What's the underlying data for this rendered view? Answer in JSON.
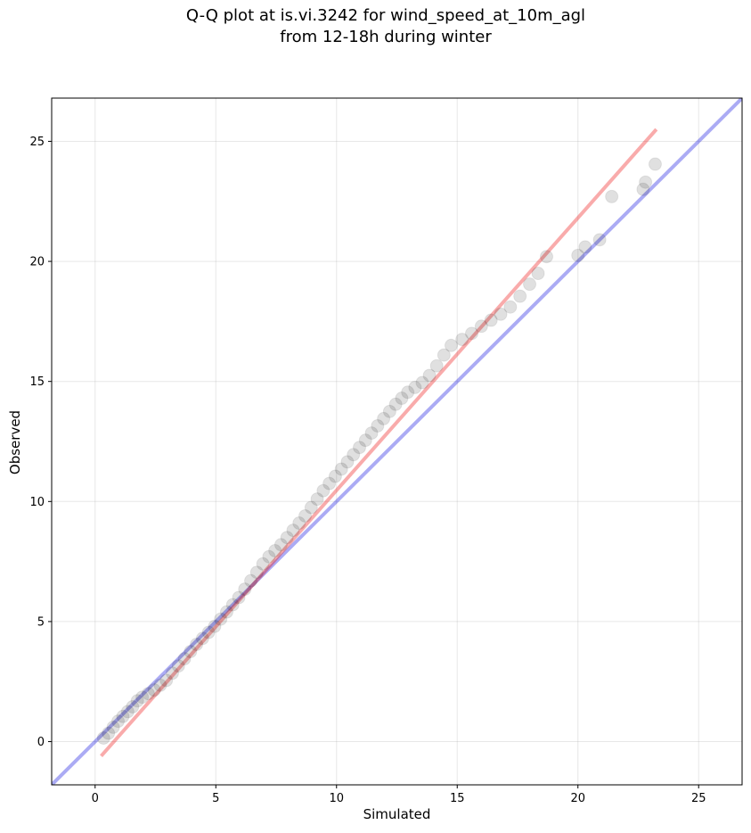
{
  "chart_data": {
    "type": "scatter",
    "title": [
      "Q-Q plot at is.vi.3242 for wind_speed_at_10m_agl",
      "from 12-18h during winter"
    ],
    "xlabel": "Simulated",
    "ylabel": "Observed",
    "xlim": [
      -1.8,
      26.8
    ],
    "ylim": [
      -1.8,
      26.8
    ],
    "xticks": [
      0,
      5,
      10,
      15,
      20,
      25
    ],
    "yticks": [
      0,
      5,
      10,
      15,
      20,
      25
    ],
    "grid": true,
    "point_color": "#000000",
    "reference_line": {
      "x": [
        -1.8,
        26.8
      ],
      "y": [
        -1.8,
        26.8
      ],
      "color": "#0000dd"
    },
    "fit_line": {
      "x": [
        0.25,
        23.25
      ],
      "y": [
        -0.6,
        25.5
      ],
      "color": "#ee0000"
    },
    "quantiles": {
      "x": [
        0.35,
        0.55,
        0.75,
        0.95,
        1.15,
        1.35,
        1.55,
        1.75,
        1.95,
        2.2,
        2.45,
        2.7,
        2.95,
        3.2,
        3.45,
        3.7,
        3.95,
        4.2,
        4.45,
        4.7,
        4.95,
        5.2,
        5.45,
        5.7,
        5.95,
        6.2,
        6.45,
        6.7,
        6.95,
        7.2,
        7.45,
        7.7,
        7.95,
        8.2,
        8.45,
        8.7,
        8.95,
        9.2,
        9.45,
        9.7,
        9.95,
        10.2,
        10.45,
        10.7,
        10.95,
        11.2,
        11.45,
        11.7,
        11.95,
        12.2,
        12.45,
        12.7,
        12.95,
        13.25,
        13.55,
        13.85,
        14.15,
        14.45,
        14.75,
        15.2,
        15.6,
        16.0,
        16.4,
        16.8,
        17.2,
        17.6,
        18.0,
        18.35,
        18.7,
        20.0,
        20.3,
        20.9,
        21.4,
        22.7,
        22.8,
        23.2
      ],
      "y": [
        0.15,
        0.35,
        0.6,
        0.85,
        1.05,
        1.25,
        1.45,
        1.7,
        1.85,
        2.0,
        2.15,
        2.35,
        2.55,
        2.85,
        3.15,
        3.45,
        3.75,
        4.05,
        4.3,
        4.55,
        4.8,
        5.1,
        5.4,
        5.7,
        6.0,
        6.35,
        6.7,
        7.05,
        7.4,
        7.7,
        7.95,
        8.2,
        8.5,
        8.8,
        9.1,
        9.4,
        9.75,
        10.1,
        10.45,
        10.75,
        11.05,
        11.35,
        11.65,
        11.95,
        12.25,
        12.55,
        12.85,
        13.15,
        13.45,
        13.75,
        14.05,
        14.3,
        14.55,
        14.75,
        14.95,
        15.25,
        15.65,
        16.1,
        16.5,
        16.75,
        17.0,
        17.3,
        17.55,
        17.8,
        18.1,
        18.55,
        19.05,
        19.5,
        20.2,
        20.25,
        20.6,
        20.9,
        22.7,
        23.0,
        23.3,
        24.05
      ]
    }
  }
}
